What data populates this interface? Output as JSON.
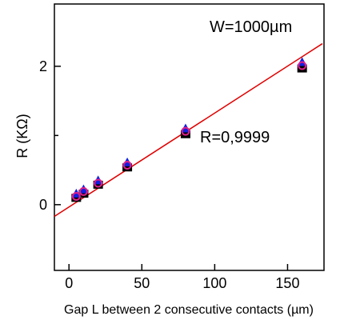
{
  "chart_data": {
    "type": "scatter",
    "xlabel": "Gap L between 2 consecutive contacts (µm)",
    "ylabel": "R (KΩ)",
    "xlim": [
      -10,
      175
    ],
    "ylim": [
      -0.95,
      2.9
    ],
    "x_ticks": [
      0,
      50,
      100,
      150
    ],
    "x_tick_labels": [
      "0",
      "50",
      "100",
      "150"
    ],
    "y_ticks": [
      0,
      2
    ],
    "y_tick_labels": [
      "0",
      "2"
    ],
    "y_minor_ticks": [
      1
    ],
    "grid": false,
    "annotations": {
      "width_label": "W=1000µm",
      "fit_label": "R=0,9999"
    },
    "fit_line": {
      "color": "#e00000",
      "x_range": [
        -10,
        176
      ],
      "slope": 0.01342,
      "intercept": -0.035
    },
    "series": [
      {
        "marker": "square",
        "color": "#000000",
        "x": [
          5,
          10,
          20,
          40,
          80,
          160
        ],
        "y": [
          0.11,
          0.17,
          0.3,
          0.55,
          1.03,
          1.98
        ]
      },
      {
        "marker": "triangle",
        "color": "#1020e0",
        "x": [
          5,
          10,
          20,
          40,
          80,
          160
        ],
        "y": [
          0.15,
          0.21,
          0.34,
          0.6,
          1.09,
          2.05
        ]
      },
      {
        "marker": "circle",
        "color": "#e0208a",
        "x": [
          5,
          10,
          20,
          40,
          80,
          160
        ],
        "y": [
          0.12,
          0.19,
          0.31,
          0.57,
          1.06,
          2.01
        ]
      }
    ]
  }
}
